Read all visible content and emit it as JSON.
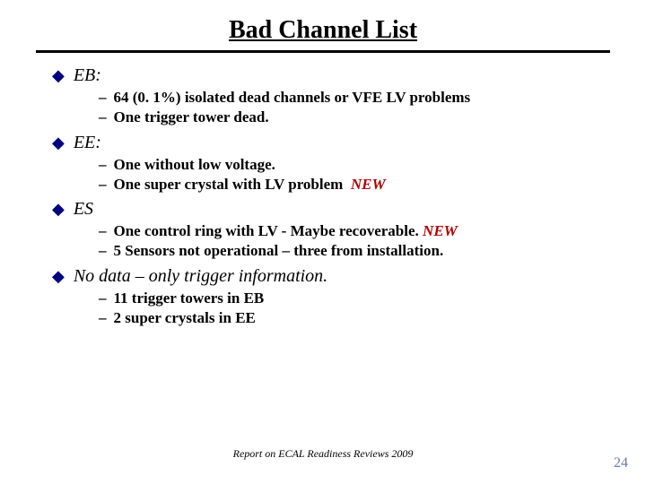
{
  "title": "Bad Channel List",
  "sections": [
    {
      "heading": "EB:",
      "items": [
        {
          "text": "64 (0. 1%) isolated dead channels or VFE LV problems",
          "new": false
        },
        {
          "text": "One trigger tower dead.",
          "new": false
        }
      ]
    },
    {
      "heading": "EE:",
      "items": [
        {
          "text": "One without low voltage.",
          "new": false
        },
        {
          "text": "One super crystal with LV problem",
          "new": true,
          "trailing_space": true
        }
      ]
    },
    {
      "heading": "ES",
      "items": [
        {
          "text": "One control ring with LV  - Maybe recoverable.",
          "new": true
        },
        {
          "text": "5 Sensors not operational – three from installation.",
          "new": false
        }
      ]
    },
    {
      "heading": "No data – only trigger information.",
      "items": [
        {
          "text": "11 trigger towers in EB",
          "new": false
        },
        {
          "text": "2 super crystals in EE",
          "new": false
        }
      ]
    }
  ],
  "new_label": "NEW",
  "footer": "Report on ECAL Readiness Reviews 2009",
  "page_number": "24",
  "colors": {
    "bullet": "#000080",
    "new": "#b30000",
    "pagenum": "#6a7aa8"
  }
}
